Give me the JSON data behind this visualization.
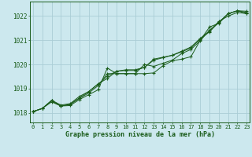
{
  "title": "Graphe pression niveau de la mer (hPa)",
  "xlabel_ticks": [
    0,
    1,
    2,
    3,
    4,
    5,
    6,
    7,
    8,
    9,
    10,
    11,
    12,
    13,
    14,
    15,
    16,
    17,
    18,
    19,
    20,
    21,
    22,
    23
  ],
  "ylim": [
    1017.6,
    1022.6
  ],
  "xlim": [
    -0.3,
    23.3
  ],
  "yticks": [
    1018,
    1019,
    1020,
    1021,
    1022
  ],
  "background_color": "#cce8ee",
  "grid_color": "#aacdd6",
  "line_color": "#1a5c1a",
  "marker_color": "#1a5c1a",
  "label_color": "#1a5c1a",
  "title_color": "#1a5c1a",
  "series": [
    [
      1018.05,
      1018.18,
      1018.45,
      1018.28,
      1018.3,
      1018.55,
      1018.75,
      1018.95,
      1019.85,
      1019.62,
      1019.62,
      1019.62,
      1019.62,
      1019.65,
      1019.95,
      1020.15,
      1020.22,
      1020.32,
      1021.0,
      1021.55,
      1021.7,
      1022.1,
      1022.22,
      1022.2
    ],
    [
      1018.05,
      1018.18,
      1018.5,
      1018.28,
      1018.35,
      1018.6,
      1018.82,
      1019.12,
      1019.62,
      1019.62,
      1019.62,
      1019.62,
      1020.0,
      1019.92,
      1020.05,
      1020.18,
      1020.45,
      1020.62,
      1020.98,
      1021.42,
      1021.72,
      1022.1,
      1022.22,
      1022.15
    ],
    [
      1018.05,
      1018.18,
      1018.52,
      1018.32,
      1018.38,
      1018.68,
      1018.88,
      1019.2,
      1019.42,
      1019.72,
      1019.75,
      1019.75,
      1019.88,
      1020.18,
      1020.28,
      1020.38,
      1020.52,
      1020.68,
      1021.05,
      1021.35,
      1021.75,
      1022.1,
      1022.22,
      1022.1
    ],
    [
      1018.05,
      1018.18,
      1018.5,
      1018.28,
      1018.35,
      1018.62,
      1018.88,
      1019.18,
      1019.52,
      1019.72,
      1019.78,
      1019.78,
      1019.88,
      1020.22,
      1020.3,
      1020.38,
      1020.55,
      1020.72,
      1021.08,
      1021.38,
      1021.78,
      1022.0,
      1022.15,
      1022.1
    ]
  ]
}
